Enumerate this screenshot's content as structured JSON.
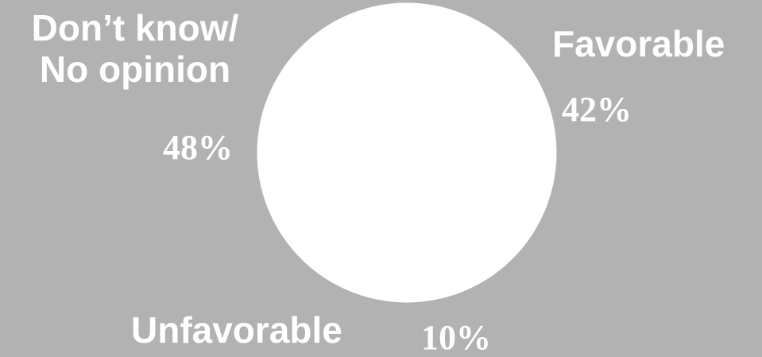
{
  "chart_data": {
    "type": "pie",
    "title": "",
    "slices": [
      {
        "label": "Favorable",
        "value": 42,
        "value_label": "42%",
        "color": "#ffffff"
      },
      {
        "label": "Unfavorable",
        "value": 10,
        "value_label": "10%",
        "color": "#ffffff"
      },
      {
        "label": "Don’t know/\nNo opinion",
        "value": 48,
        "value_label": "48%",
        "color": "#ffffff"
      }
    ],
    "background": "#b2b2b2",
    "label_color": "#ffffff"
  }
}
